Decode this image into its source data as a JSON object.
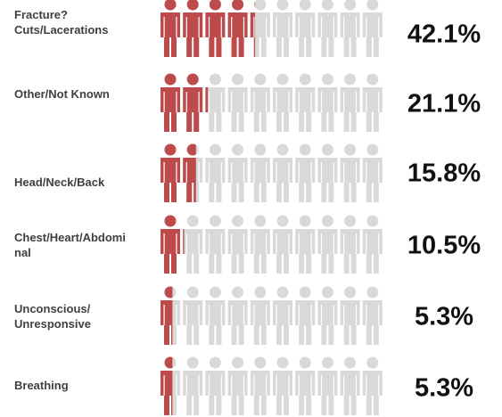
{
  "chart_data": {
    "type": "pictogram",
    "categories": [
      "Fracture?Cuts/Lacerations",
      "Other/Not Known",
      "Head/Neck/Back",
      "Chest/Heart/Abdominal",
      "Unconscious/ Unresponsive",
      "Breathing"
    ],
    "values": [
      42.1,
      21.1,
      15.8,
      10.5,
      5.3,
      5.3
    ],
    "value_labels": [
      "42.1%",
      "21.1%",
      "15.8%",
      "10.5%",
      "5.3%",
      "5.3%"
    ],
    "color": "#bd4b4b",
    "background_color": "#d9d9d9",
    "ylim": [
      0,
      100
    ]
  }
}
